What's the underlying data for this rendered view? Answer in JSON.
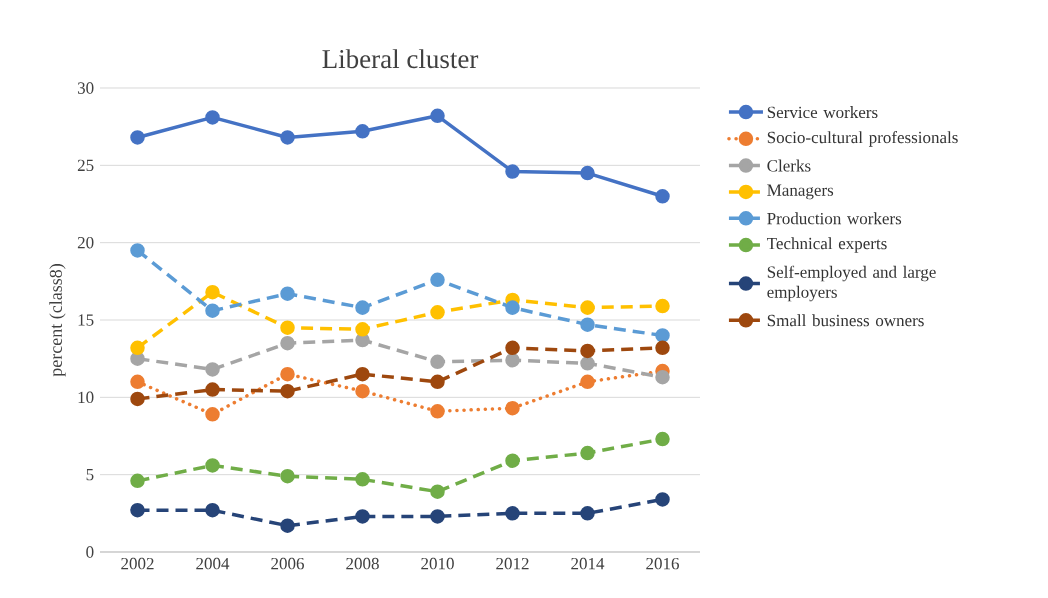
{
  "chart_data": {
    "type": "line",
    "title": "Liberal cluster",
    "ylabel": "percent (class8)",
    "categories": [
      "2002",
      "2004",
      "2006",
      "2008",
      "2010",
      "2012",
      "2014",
      "2016"
    ],
    "series": [
      {
        "name": "Service workers",
        "color": "#4472c4",
        "line_style": "solid",
        "values": [
          26.8,
          28.1,
          26.8,
          27.2,
          28.2,
          24.6,
          24.5,
          23.0
        ]
      },
      {
        "name": "Socio-cultural professionals",
        "color": "#ed7d31",
        "line_style": "dotted",
        "values": [
          11.0,
          8.9,
          11.5,
          10.4,
          9.1,
          9.3,
          11.0,
          11.7
        ]
      },
      {
        "name": "Clerks",
        "color": "#a5a5a5",
        "line_style": "dashed",
        "values": [
          12.5,
          11.8,
          13.5,
          13.7,
          12.3,
          12.4,
          12.2,
          11.3
        ]
      },
      {
        "name": "Managers",
        "color": "#ffc000",
        "line_style": "dashed",
        "values": [
          13.2,
          16.8,
          14.5,
          14.4,
          15.5,
          16.3,
          15.8,
          15.9
        ]
      },
      {
        "name": "Production workers",
        "color": "#5b9bd5",
        "line_style": "dashed",
        "values": [
          19.5,
          15.6,
          16.7,
          15.8,
          17.6,
          15.8,
          14.7,
          14.0
        ]
      },
      {
        "name": "Technical experts",
        "color": "#70ad47",
        "line_style": "dashed",
        "values": [
          4.6,
          5.6,
          4.9,
          4.7,
          3.9,
          5.9,
          6.4,
          7.3
        ]
      },
      {
        "name": "Self-employed and large employers",
        "color": "#264478",
        "line_style": "dashed",
        "values": [
          2.7,
          2.7,
          1.7,
          2.3,
          2.3,
          2.5,
          2.5,
          3.4
        ]
      },
      {
        "name": "Small business owners",
        "color": "#9e480e",
        "line_style": "dashed",
        "values": [
          9.9,
          10.5,
          10.4,
          11.5,
          11.0,
          13.2,
          13.0,
          13.2
        ]
      }
    ],
    "ylim": [
      0,
      30
    ],
    "yticks": [
      0,
      5,
      10,
      15,
      20,
      25,
      30
    ],
    "grid": "y",
    "legend": "right",
    "marker": "circle"
  }
}
